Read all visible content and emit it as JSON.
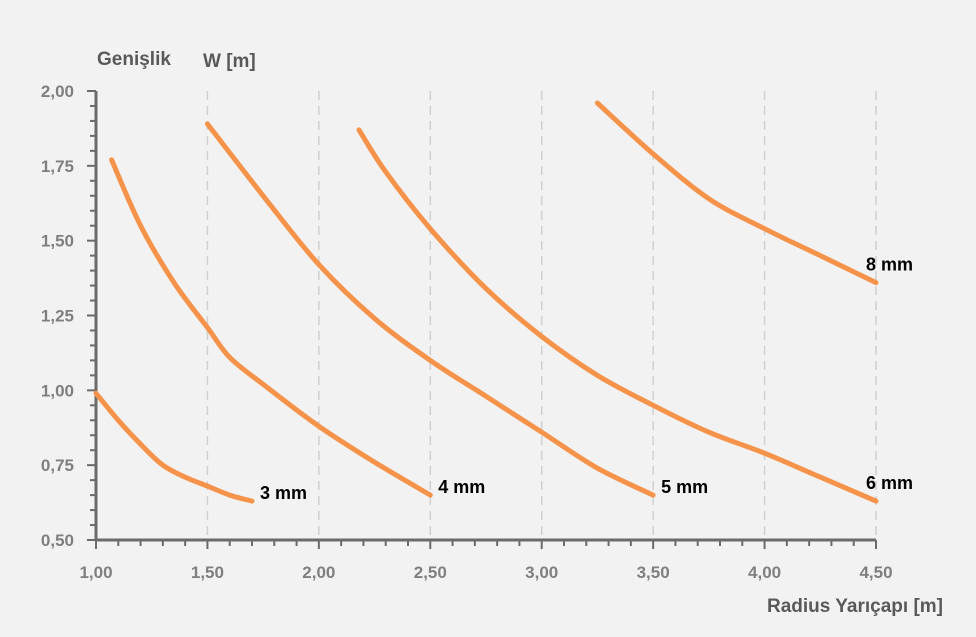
{
  "chart_data": {
    "type": "line",
    "ylabel_main": "Genişlik",
    "ylabel_sym": "W [m]",
    "xlabel": "Radius Yarıçapı [m]",
    "xlim": [
      1.0,
      4.5
    ],
    "ylim": [
      0.5,
      2.0
    ],
    "x_ticks": [
      "1,00",
      "1,50",
      "2,00",
      "2,50",
      "3,00",
      "3,50",
      "4,00",
      "4,50"
    ],
    "y_ticks": [
      "0,50",
      "0,75",
      "1,00",
      "1,25",
      "1,50",
      "1,75",
      "2,00"
    ],
    "grid": "vertical-dashed",
    "line_color": "#f5934a",
    "series": [
      {
        "name": "3 mm",
        "x": [
          1.0,
          1.1,
          1.2,
          1.3,
          1.4,
          1.5,
          1.6,
          1.7
        ],
        "y": [
          0.99,
          0.9,
          0.82,
          0.75,
          0.71,
          0.68,
          0.65,
          0.63
        ]
      },
      {
        "name": "4 mm",
        "x": [
          1.07,
          1.2,
          1.35,
          1.5,
          1.6,
          1.75,
          2.0,
          2.25,
          2.5
        ],
        "y": [
          1.77,
          1.55,
          1.36,
          1.21,
          1.11,
          1.02,
          0.88,
          0.76,
          0.65
        ]
      },
      {
        "name": "5 mm",
        "x": [
          1.5,
          1.75,
          2.0,
          2.25,
          2.5,
          2.75,
          3.0,
          3.25,
          3.5
        ],
        "y": [
          1.89,
          1.65,
          1.42,
          1.24,
          1.1,
          0.98,
          0.86,
          0.74,
          0.65
        ]
      },
      {
        "name": "6 mm",
        "x": [
          2.18,
          2.3,
          2.5,
          2.75,
          3.0,
          3.25,
          3.5,
          3.75,
          4.0,
          4.25,
          4.5
        ],
        "y": [
          1.87,
          1.73,
          1.54,
          1.34,
          1.18,
          1.05,
          0.95,
          0.86,
          0.79,
          0.71,
          0.63
        ]
      },
      {
        "name": "8 mm",
        "x": [
          3.25,
          3.5,
          3.75,
          4.0,
          4.25,
          4.5
        ],
        "y": [
          1.96,
          1.79,
          1.64,
          1.54,
          1.45,
          1.36
        ]
      }
    ]
  }
}
